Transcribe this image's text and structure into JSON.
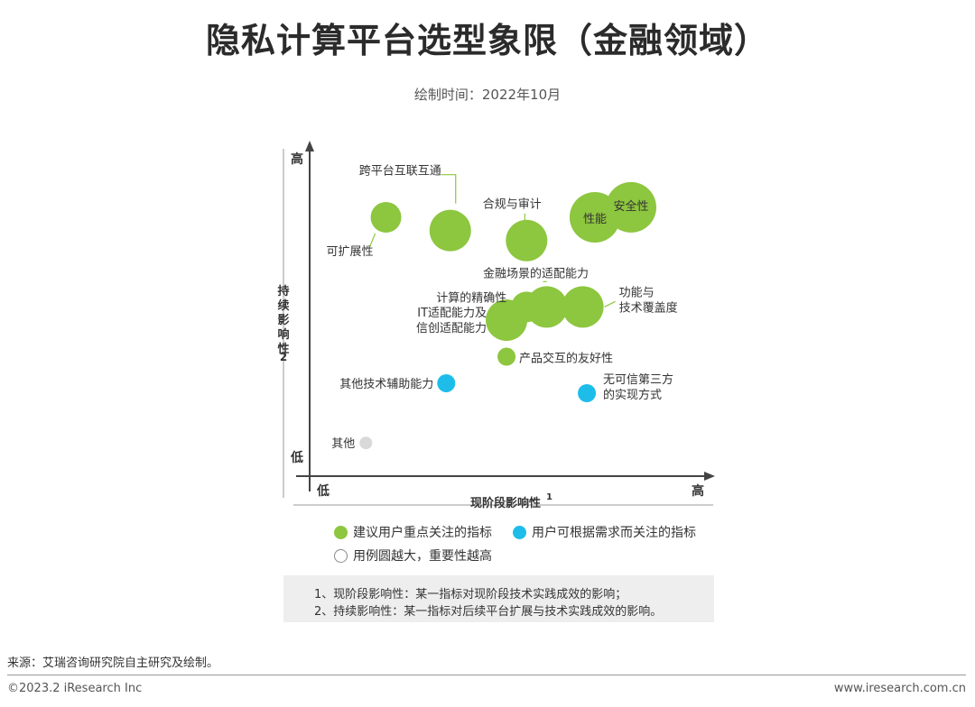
{
  "title": "隐私计算平台选型象限（金融领域）",
  "subtitle": "绘制时间：2022年10月",
  "chart_data": {
    "type": "scatter",
    "xlabel": "现阶段影响性",
    "xlabel_sup": "1",
    "ylabel": "持续影响性",
    "ylabel_sup": "2",
    "x_ticks": {
      "low": "低",
      "high": "高"
    },
    "y_ticks": {
      "low": "低",
      "high": "高"
    },
    "xlim": [
      0,
      100
    ],
    "ylim": [
      0,
      100
    ],
    "colors": {
      "green": "#8dc63f",
      "blue": "#1ebde9",
      "gray": "#d9d9d9"
    },
    "points": [
      {
        "label": "可扩展性",
        "x": 19,
        "y": 78,
        "size": "medium",
        "color": "green"
      },
      {
        "label": "跨平台互联互通",
        "x": 35,
        "y": 74,
        "size": "large",
        "color": "green"
      },
      {
        "label": "合规与审计",
        "x": 54,
        "y": 71,
        "size": "large",
        "color": "green"
      },
      {
        "label": "性能",
        "x": 71,
        "y": 78,
        "size": "xlarge",
        "color": "green"
      },
      {
        "label": "安全性",
        "x": 80,
        "y": 81,
        "size": "xlarge",
        "color": "green"
      },
      {
        "label": "金融场景的适配能力",
        "x": 59,
        "y": 51,
        "size": "large",
        "color": "green"
      },
      {
        "label": "计算的精确性",
        "x": 54,
        "y": 51,
        "size": "medium",
        "color": "green"
      },
      {
        "label": "功能与\n技术覆盖度",
        "x": 68,
        "y": 51,
        "size": "large",
        "color": "green"
      },
      {
        "label": "IT适配能力及\n信创适配能力",
        "x": 49,
        "y": 47,
        "size": "large",
        "color": "green"
      },
      {
        "label": "产品交互的友好性",
        "x": 49,
        "y": 36,
        "size": "small",
        "color": "green"
      },
      {
        "label": "其他技术辅助能力",
        "x": 34,
        "y": 28,
        "size": "small",
        "color": "blue"
      },
      {
        "label": "无可信第三方\n的实现方式",
        "x": 69,
        "y": 25,
        "size": "small",
        "color": "blue"
      },
      {
        "label": "其他",
        "x": 14,
        "y": 10,
        "size": "tiny",
        "color": "gray"
      }
    ]
  },
  "legend": {
    "green_label": "建议用户重点关注的指标",
    "blue_label": "用户可根据需求而关注的指标",
    "size_label": "用例圆越大，重要性越高"
  },
  "notes": [
    "1、现阶段影响性：某一指标对现阶段技术实践成效的影响；",
    "2、持续影响性：某一指标对后续平台扩展与技术实践成效的影响。"
  ],
  "source": "来源：艾瑞咨询研究院自主研究及绘制。",
  "footer": {
    "left": "©2023.2 iResearch Inc",
    "right": "www.iresearch.com.cn"
  }
}
